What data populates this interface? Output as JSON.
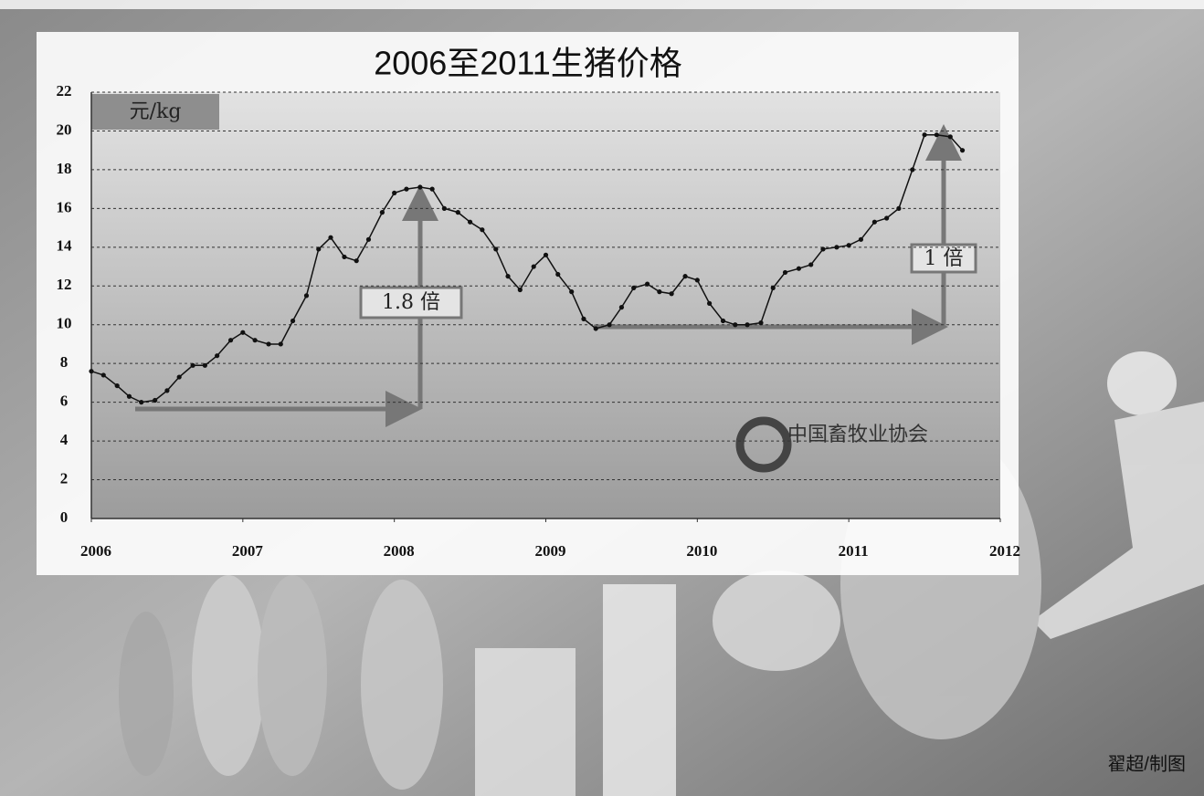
{
  "chart_data": {
    "type": "line",
    "title": "2006至2011生猪价格",
    "unit_label": "元/kg",
    "annotations": [
      "1.8 倍",
      "1 倍"
    ],
    "logo_text": "中国畜牧业协会",
    "credit": "翟超/制图",
    "x": [
      2006,
      2006.08,
      2006.17,
      2006.25,
      2006.33,
      2006.42,
      2006.5,
      2006.58,
      2006.67,
      2006.75,
      2006.83,
      2006.92,
      2007,
      2007.08,
      2007.17,
      2007.25,
      2007.33,
      2007.42,
      2007.5,
      2007.58,
      2007.67,
      2007.75,
      2007.83,
      2007.92,
      2008,
      2008.08,
      2008.17,
      2008.25,
      2008.33,
      2008.42,
      2008.5,
      2008.58,
      2008.67,
      2008.75,
      2008.83,
      2008.92,
      2009,
      2009.08,
      2009.17,
      2009.25,
      2009.33,
      2009.42,
      2009.5,
      2009.58,
      2009.67,
      2009.75,
      2009.83,
      2009.92,
      2010,
      2010.08,
      2010.17,
      2010.25,
      2010.33,
      2010.42,
      2010.5,
      2010.58,
      2010.67,
      2010.75,
      2010.83,
      2010.92,
      2011,
      2011.08,
      2011.17,
      2011.25,
      2011.33,
      2011.42,
      2011.5,
      2011.58,
      2011.67,
      2011.75
    ],
    "series": [
      {
        "color": "#111111",
        "values": [
          7.6,
          7.4,
          6.85,
          6.3,
          6.0,
          6.1,
          6.6,
          7.3,
          7.9,
          7.9,
          8.4,
          9.2,
          9.6,
          9.2,
          9.0,
          9.0,
          10.2,
          11.5,
          13.9,
          14.5,
          13.5,
          13.3,
          14.4,
          15.8,
          16.8,
          17.0,
          17.1,
          17.0,
          16.0,
          15.8,
          15.3,
          14.9,
          13.9,
          12.5,
          11.8,
          13.0,
          13.6,
          12.6,
          11.7,
          10.3,
          9.8,
          10.0,
          10.9,
          11.9,
          12.1,
          11.7,
          11.6,
          12.5,
          12.3,
          11.1,
          10.2,
          10.0,
          10.0,
          10.1,
          11.9,
          12.7,
          12.9,
          13.1,
          13.9,
          14.0,
          14.1,
          14.4,
          15.3,
          15.5,
          16.0,
          18.0,
          19.8,
          19.8,
          19.7,
          19.0
        ]
      }
    ],
    "xlim": [
      2006,
      2012
    ],
    "xticks": [
      2006,
      2007,
      2008,
      2009,
      2010,
      2011,
      2012
    ],
    "ylim": [
      0,
      22
    ],
    "yticks": [
      0,
      2,
      4,
      6,
      8,
      10,
      12,
      14,
      16,
      18,
      20,
      22
    ],
    "grid": true
  }
}
